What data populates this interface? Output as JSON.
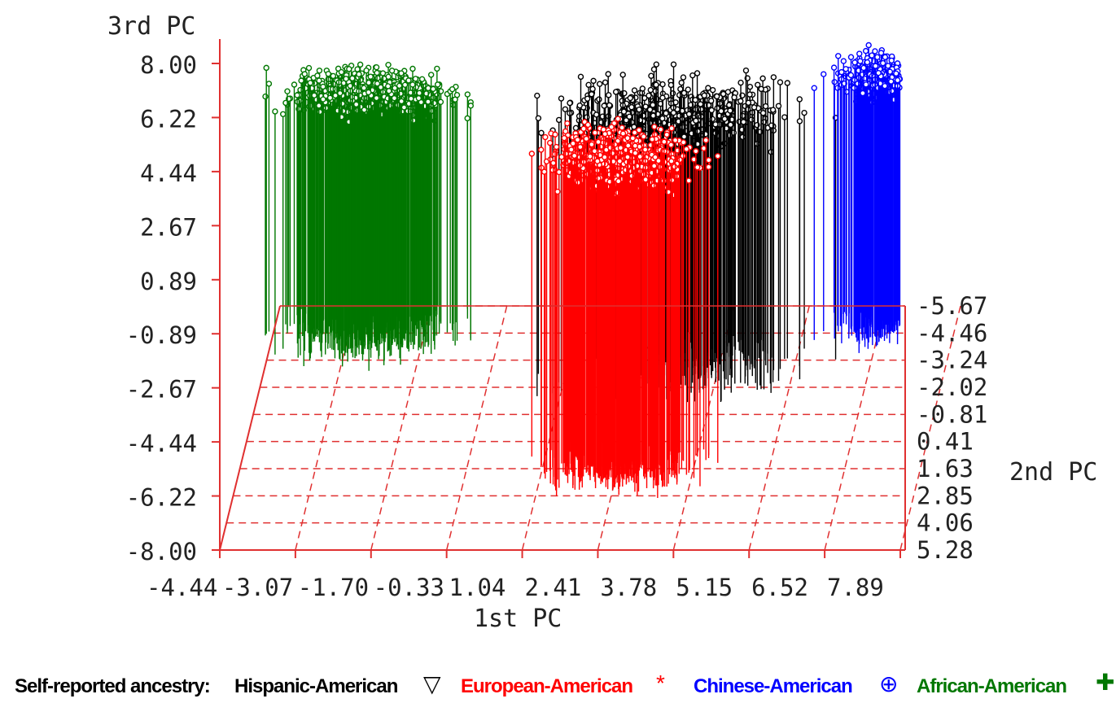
{
  "chart_data": {
    "type": "scatter",
    "subtype": "3d-needle-scatter",
    "title": "",
    "xlabel": "1st PC",
    "ylabel": "2nd PC",
    "zlabel": "3rd PC",
    "xlim": [
      -4.44,
      7.89
    ],
    "ylim": [
      -5.67,
      5.28
    ],
    "zlim": [
      -8.0,
      8.0
    ],
    "x_ticks": [
      "-4.44",
      "-3.07",
      "-1.70",
      "-0.33",
      "1.04",
      "2.41",
      "3.78",
      "5.15",
      "6.52",
      "7.89"
    ],
    "y_ticks": [
      "-5.67",
      "-4.46",
      "-3.24",
      "-2.02",
      "-0.81",
      "0.41",
      "1.63",
      "2.85",
      "4.06",
      "5.28"
    ],
    "z_ticks": [
      "8.00",
      "6.22",
      "4.44",
      "2.67",
      "0.89",
      "-0.89",
      "-2.67",
      "-4.44",
      "-6.22",
      "-8.00"
    ],
    "series": [
      {
        "name": "Hispanic-American",
        "color": "#000000",
        "marker": "triangle-down",
        "cluster": {
          "x_center": 3.3,
          "x_spread": 3.2,
          "y_center": -3.0,
          "y_spread": 2.6,
          "z_center": 6.0,
          "z_spread": 1.6
        }
      },
      {
        "name": "European-American",
        "color": "#ff0000",
        "marker": "asterisk",
        "cluster": {
          "x_center": 2.6,
          "x_spread": 2.0,
          "y_center": 1.6,
          "y_spread": 1.7,
          "z_center": 4.7,
          "z_spread": 1.3
        }
      },
      {
        "name": "Chinese-American",
        "color": "#0000ff",
        "marker": "plus-circle",
        "cluster": {
          "x_center": 6.9,
          "x_spread": 1.3,
          "y_center": -4.8,
          "y_spread": 1.5,
          "z_center": 7.1,
          "z_spread": 1.0
        }
      },
      {
        "name": "African-American",
        "color": "#007700",
        "marker": "plus",
        "cluster": {
          "x_center": -2.4,
          "x_spread": 2.4,
          "y_center": -4.5,
          "y_spread": 1.9,
          "z_center": 6.6,
          "z_spread": 1.0
        }
      }
    ],
    "legend": {
      "title": "Self-reported ancestry:",
      "position": "bottom"
    },
    "grid": true
  },
  "colors": {
    "axis": "#e03030",
    "grid_dash": "#e03030"
  }
}
